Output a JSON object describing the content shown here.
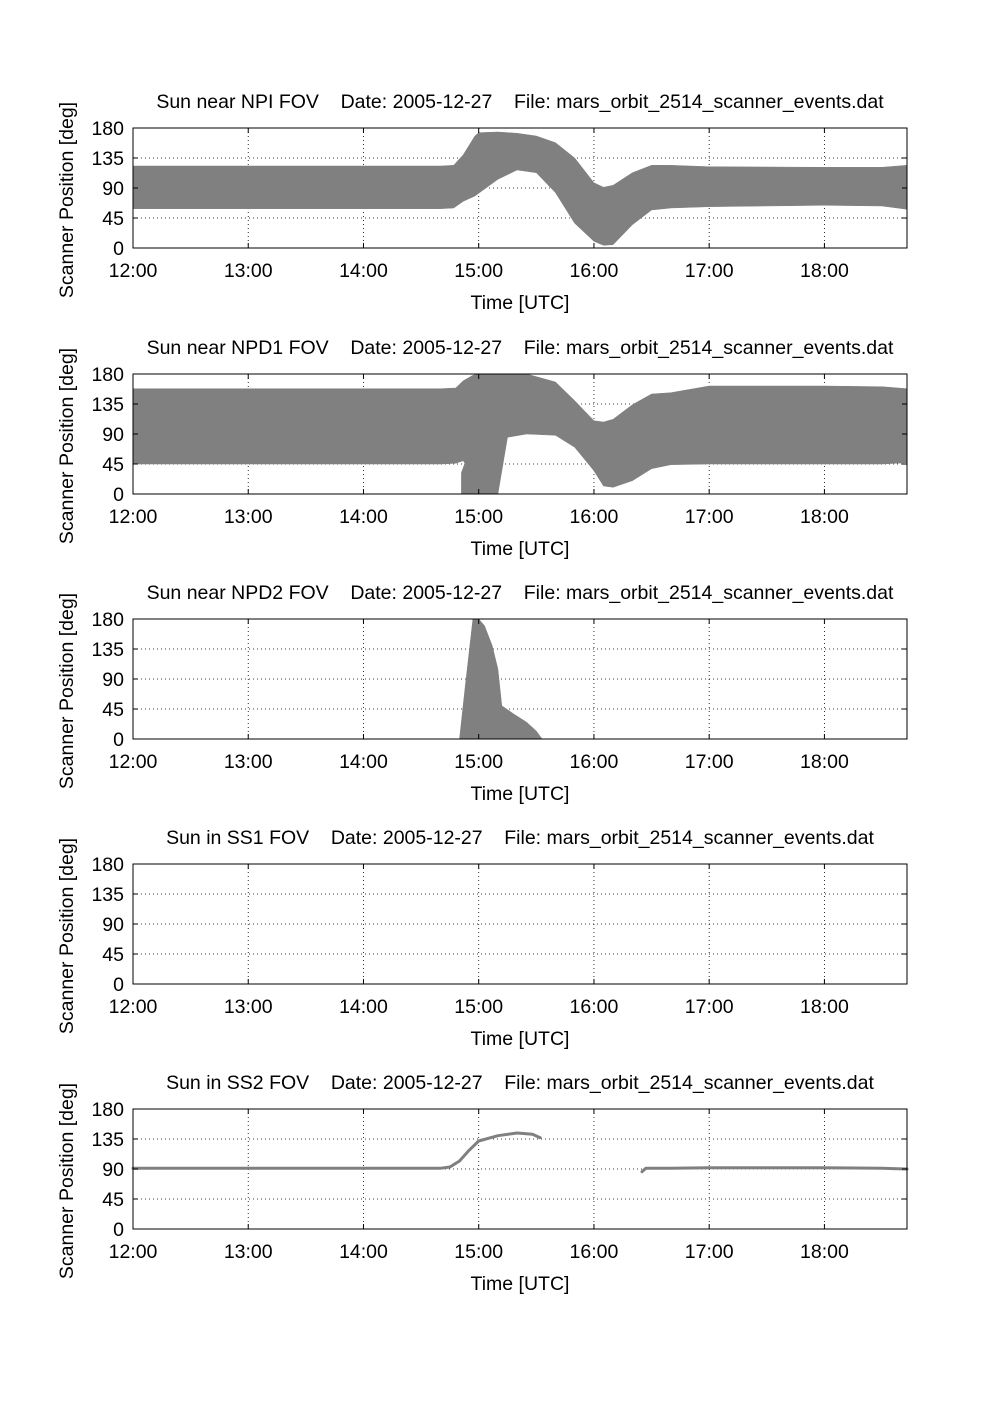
{
  "figure": {
    "xlabel": "Time [UTC]",
    "ylabel": "Scanner Position [deg]",
    "colors": {
      "fill": "#808080",
      "line": "#808080",
      "grid": "#000000"
    }
  },
  "chart_data": [
    {
      "type": "area",
      "title": "Sun near NPI FOV    Date: 2005-12-27    File: mars_orbit_2514_scanner_events.dat",
      "xlabel": "Time [UTC]",
      "ylabel": "Scanner Position [deg]",
      "xlim": [
        "12:00",
        "18:43"
      ],
      "ylim": [
        0,
        180
      ],
      "x_ticks": [
        "12:00",
        "13:00",
        "14:00",
        "15:00",
        "16:00",
        "17:00",
        "18:00"
      ],
      "y_ticks": [
        "0",
        "45",
        "90",
        "135",
        "180"
      ],
      "grid": true,
      "bands": [
        {
          "x": [
            "12:00",
            "14:40",
            "14:47",
            "14:52",
            "14:58",
            "15:00",
            "15:10",
            "15:20",
            "15:30",
            "15:40",
            "15:50",
            "16:00",
            "16:05",
            "16:10",
            "16:20",
            "16:30",
            "16:40",
            "17:00",
            "18:00",
            "18:30",
            "18:43"
          ],
          "upper": [
            123,
            123,
            124,
            140,
            168,
            173,
            174,
            172,
            168,
            158,
            135,
            98,
            91,
            94,
            113,
            124,
            124,
            122,
            121,
            121,
            124
          ],
          "lower": [
            59,
            59,
            60,
            70,
            78,
            82,
            103,
            117,
            113,
            83,
            37,
            10,
            4,
            5,
            35,
            57,
            60,
            62,
            64,
            63,
            58
          ]
        }
      ]
    },
    {
      "type": "area",
      "title": "Sun near NPD1 FOV    Date: 2005-12-27    File: mars_orbit_2514_scanner_events.dat",
      "xlabel": "Time [UTC]",
      "ylabel": "Scanner Position [deg]",
      "xlim": [
        "12:00",
        "18:43"
      ],
      "ylim": [
        0,
        180
      ],
      "x_ticks": [
        "12:00",
        "13:00",
        "14:00",
        "15:00",
        "16:00",
        "17:00",
        "18:00"
      ],
      "y_ticks": [
        "0",
        "45",
        "90",
        "135",
        "180"
      ],
      "grid": true,
      "bands": [
        {
          "x": [
            "12:00",
            "14:40",
            "14:48",
            "14:52",
            "14:57",
            "15:00",
            "15:05",
            "15:10",
            "15:15",
            "15:25",
            "15:40",
            "15:50",
            "16:00",
            "16:05",
            "16:10",
            "16:20",
            "16:30",
            "16:40",
            "17:00",
            "18:00",
            "18:30",
            "18:43"
          ],
          "upper": [
            158,
            158,
            159,
            170,
            178,
            180,
            180,
            180,
            180,
            180,
            168,
            140,
            110,
            108,
            112,
            134,
            150,
            152,
            162,
            162,
            161,
            158
          ],
          "lower": [
            45,
            45,
            46,
            50,
            25,
            0,
            0,
            0,
            85,
            90,
            88,
            70,
            35,
            12,
            10,
            20,
            38,
            44,
            45,
            45,
            45,
            47
          ]
        },
        {
          "x": [
            "14:51",
            "14:53",
            "14:56",
            "15:00",
            "15:03",
            "15:04"
          ],
          "upper": [
            32,
            48,
            44,
            10,
            8,
            2
          ],
          "lower": [
            0,
            0,
            0,
            0,
            0,
            0
          ]
        }
      ]
    },
    {
      "type": "area",
      "title": "Sun near NPD2 FOV    Date: 2005-12-27    File: mars_orbit_2514_scanner_events.dat",
      "xlabel": "Time [UTC]",
      "ylabel": "Scanner Position [deg]",
      "xlim": [
        "12:00",
        "18:43"
      ],
      "ylim": [
        0,
        180
      ],
      "x_ticks": [
        "12:00",
        "13:00",
        "14:00",
        "15:00",
        "16:00",
        "17:00",
        "18:00"
      ],
      "y_ticks": [
        "0",
        "45",
        "90",
        "135",
        "180"
      ],
      "grid": true,
      "bands": [
        {
          "x": [
            "14:50",
            "14:53",
            "14:57",
            "15:00",
            "15:03",
            "15:07",
            "15:10",
            "15:12",
            "15:18",
            "15:25",
            "15:30",
            "15:33"
          ],
          "upper": [
            0,
            80,
            180,
            180,
            170,
            140,
            105,
            50,
            38,
            25,
            12,
            0
          ],
          "lower": [
            0,
            0,
            0,
            0,
            0,
            0,
            0,
            0,
            0,
            0,
            0,
            0
          ]
        }
      ]
    },
    {
      "type": "area",
      "title": "Sun in SS1 FOV    Date: 2005-12-27    File: mars_orbit_2514_scanner_events.dat",
      "xlabel": "Time [UTC]",
      "ylabel": "Scanner Position [deg]",
      "xlim": [
        "12:00",
        "18:43"
      ],
      "ylim": [
        0,
        180
      ],
      "x_ticks": [
        "12:00",
        "13:00",
        "14:00",
        "15:00",
        "16:00",
        "17:00",
        "18:00"
      ],
      "y_ticks": [
        "0",
        "45",
        "90",
        "135",
        "180"
      ],
      "grid": true,
      "bands": []
    },
    {
      "type": "line",
      "title": "Sun in SS2 FOV    Date: 2005-12-27    File: mars_orbit_2514_scanner_events.dat",
      "xlabel": "Time [UTC]",
      "ylabel": "Scanner Position [deg]",
      "xlim": [
        "12:00",
        "18:43"
      ],
      "ylim": [
        0,
        180
      ],
      "x_ticks": [
        "12:00",
        "13:00",
        "14:00",
        "15:00",
        "16:00",
        "17:00",
        "18:00"
      ],
      "y_ticks": [
        "0",
        "45",
        "90",
        "135",
        "180"
      ],
      "grid": true,
      "lines": [
        {
          "x": [
            "12:00",
            "14:40",
            "14:45",
            "14:50",
            "14:55",
            "15:00",
            "15:10",
            "15:20",
            "15:28",
            "15:32"
          ],
          "y": [
            91,
            91,
            93,
            102,
            118,
            132,
            140,
            144,
            142,
            137
          ]
        },
        {
          "x": [
            "16:25",
            "16:27",
            "16:40",
            "17:00",
            "18:00",
            "18:30",
            "18:43"
          ],
          "y": [
            86,
            91,
            91,
            92,
            92,
            91,
            90
          ]
        }
      ]
    }
  ]
}
